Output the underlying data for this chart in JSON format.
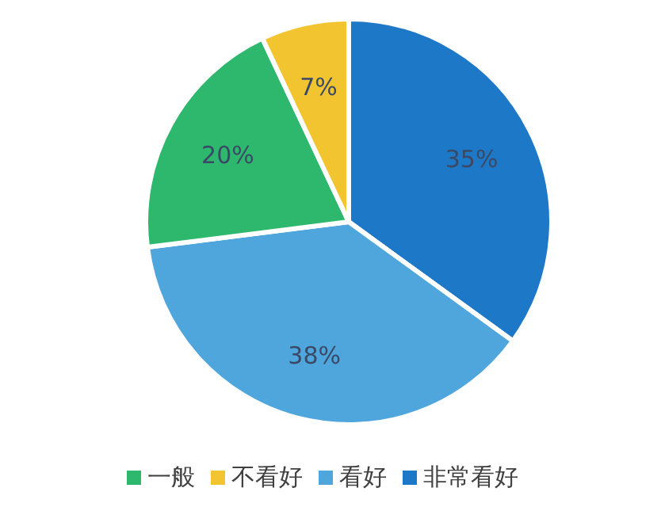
{
  "chart_data": {
    "type": "pie",
    "categories": [
      "非常看好",
      "看好",
      "一般",
      "不看好"
    ],
    "values": [
      35,
      38,
      20,
      7
    ],
    "value_labels": [
      "35%",
      "38%",
      "20%",
      "7%"
    ],
    "colors": [
      "#1e78c8",
      "#4ea6dc",
      "#2eb86e",
      "#f2c530"
    ],
    "legend": "bottom"
  }
}
